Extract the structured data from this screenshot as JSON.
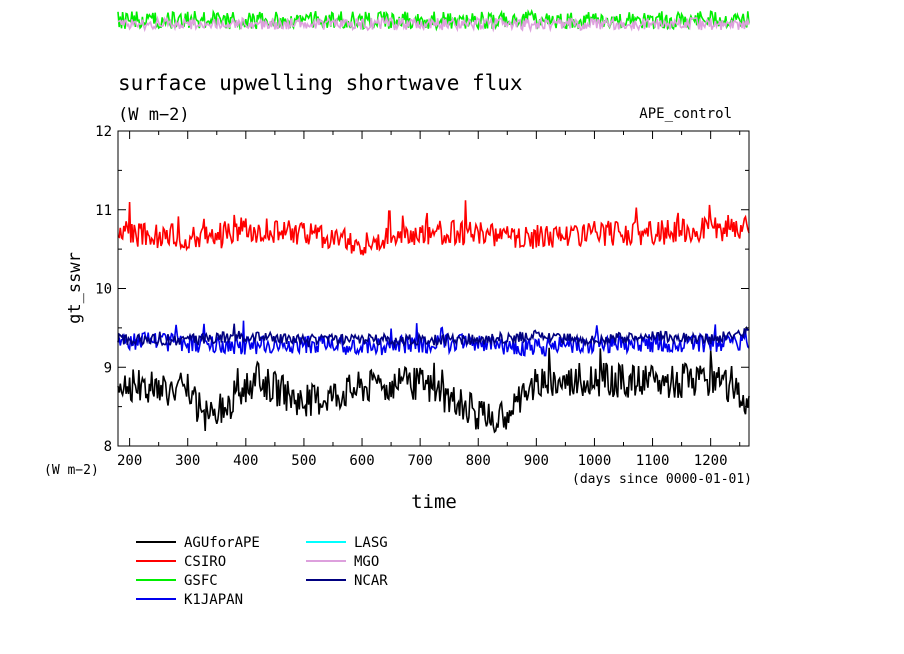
{
  "chart_data": {
    "type": "line",
    "title": "surface upwelling shortwave flux",
    "subtitle": "(W m−2)",
    "annotation": "APE_control",
    "xlabel": "time",
    "x_unit": "(days since 0000-01-01)",
    "ylabel": "gt_sswr",
    "y_unit": "(W m−2)",
    "xlim": [
      180,
      1266
    ],
    "ylim": [
      8,
      12
    ],
    "x_ticks": [
      200,
      300,
      400,
      500,
      600,
      700,
      800,
      900,
      1000,
      1100,
      1200
    ],
    "y_ticks": [
      8,
      9,
      10,
      11,
      12
    ],
    "grid": false,
    "legend_position": "bottom-left",
    "series": [
      {
        "name": "AGUforAPE",
        "color": "#000000",
        "mean": 8.75,
        "amplitude": 0.22,
        "points": [
          [
            180,
            8.8
          ],
          [
            300,
            8.7
          ],
          [
            330,
            8.35
          ],
          [
            420,
            8.85
          ],
          [
            500,
            8.55
          ],
          [
            600,
            8.75
          ],
          [
            700,
            8.8
          ],
          [
            830,
            8.3
          ],
          [
            900,
            8.8
          ],
          [
            1000,
            8.85
          ],
          [
            1100,
            8.8
          ],
          [
            1200,
            8.85
          ],
          [
            1266,
            8.6
          ]
        ]
      },
      {
        "name": "CSIRO",
        "color": "#ff0000",
        "mean": 10.7,
        "amplitude": 0.16,
        "points": [
          [
            180,
            10.7
          ],
          [
            300,
            10.65
          ],
          [
            400,
            10.75
          ],
          [
            500,
            10.7
          ],
          [
            600,
            10.55
          ],
          [
            700,
            10.72
          ],
          [
            800,
            10.7
          ],
          [
            900,
            10.65
          ],
          [
            1000,
            10.7
          ],
          [
            1100,
            10.7
          ],
          [
            1200,
            10.75
          ],
          [
            1266,
            10.8
          ]
        ]
      },
      {
        "name": "GSFC",
        "color": "#00ee00",
        "mean": null,
        "amplitude": null,
        "points": []
      },
      {
        "name": "K1JAPAN",
        "color": "#0000ee",
        "mean": 9.3,
        "amplitude": 0.12,
        "points": [
          [
            180,
            9.35
          ],
          [
            300,
            9.3
          ],
          [
            400,
            9.28
          ],
          [
            500,
            9.3
          ],
          [
            600,
            9.25
          ],
          [
            700,
            9.3
          ],
          [
            800,
            9.3
          ],
          [
            900,
            9.25
          ],
          [
            1000,
            9.3
          ],
          [
            1100,
            9.3
          ],
          [
            1200,
            9.3
          ],
          [
            1266,
            9.35
          ]
        ]
      },
      {
        "name": "LASG",
        "color": "#00ffff",
        "mean": null,
        "amplitude": null,
        "points": []
      },
      {
        "name": "MGO",
        "color": "#dda0dd",
        "mean": null,
        "amplitude": null,
        "points": []
      },
      {
        "name": "NCAR",
        "color": "#000080",
        "mean": 9.35,
        "amplitude": 0.07,
        "points": [
          [
            180,
            9.35
          ],
          [
            300,
            9.35
          ],
          [
            400,
            9.4
          ],
          [
            500,
            9.35
          ],
          [
            600,
            9.35
          ],
          [
            700,
            9.35
          ],
          [
            800,
            9.35
          ],
          [
            900,
            9.4
          ],
          [
            1000,
            9.35
          ],
          [
            1100,
            9.4
          ],
          [
            1200,
            9.35
          ],
          [
            1266,
            9.45
          ]
        ]
      }
    ]
  }
}
